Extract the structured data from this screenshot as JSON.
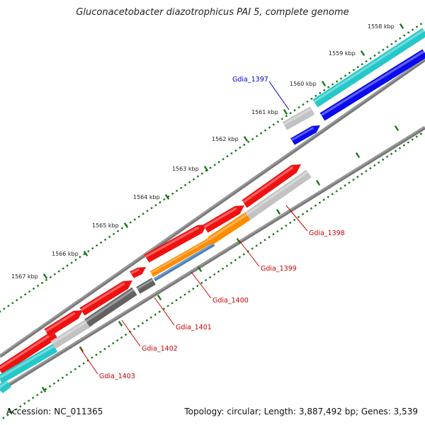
{
  "title": "Gluconacetobacter diazotrophicus PAI 5, complete genome",
  "footer": {
    "accession": "Accession: NC_011365",
    "summary": "Topology: circular; Length: 3,887,492 bp; Genes: 3,539"
  },
  "colors": {
    "red": "#f01010",
    "cyan": "#24c8c8",
    "blue": "#0a0aee",
    "gray": "#c2c2c2",
    "darkgray": "#626262",
    "orange": "#ff8c00",
    "steelblue": "#4a80b8",
    "label_red": "#cc0000",
    "label_blue": "#0000cc",
    "tick_green": "#1a7a1a",
    "backbone": "#7a7a7a"
  },
  "ticks": [
    {
      "label": "1558 kbp"
    },
    {
      "label": "1559 kbp"
    },
    {
      "label": "1560 kbp"
    },
    {
      "label": "1561 kbp"
    },
    {
      "label": "1562 kbp"
    },
    {
      "label": "1563 kbp"
    },
    {
      "label": "1564 kbp"
    },
    {
      "label": "1565 kbp"
    },
    {
      "label": "1566 kbp"
    },
    {
      "label": "1567 kbp"
    }
  ],
  "gene_labels": [
    {
      "text": "Gdia_1397",
      "color": "blue"
    },
    {
      "text": "Gdia_1398",
      "color": "red"
    },
    {
      "text": "Gdia_1399",
      "color": "red"
    },
    {
      "text": "Gdia_1400",
      "color": "red"
    },
    {
      "text": "Gdia_1401",
      "color": "red"
    },
    {
      "text": "Gdia_1402",
      "color": "red"
    },
    {
      "text": "Gdia_1403",
      "color": "red"
    }
  ]
}
